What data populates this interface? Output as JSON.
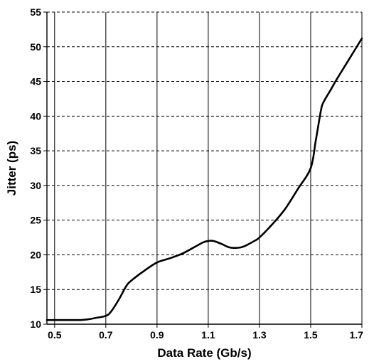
{
  "chart_data": {
    "type": "line",
    "title": "",
    "xlabel": "Data Rate (Gb/s)",
    "ylabel": "Jitter (ps)",
    "xlim": [
      0.47,
      1.7
    ],
    "ylim": [
      10,
      55
    ],
    "x_ticks": [
      0.5,
      0.7,
      0.9,
      1.1,
      1.3,
      1.5,
      1.7
    ],
    "x_tick_labels": [
      "0.5",
      "0.7",
      "0.9",
      "1.1",
      "1.3",
      "1.5",
      "1.7"
    ],
    "y_ticks": [
      10,
      15,
      20,
      25,
      30,
      35,
      40,
      45,
      50,
      55
    ],
    "y_tick_labels": [
      "10",
      "15",
      "20",
      "25",
      "30",
      "35",
      "40",
      "45",
      "50",
      "55"
    ],
    "grid": {
      "vertical": "solid",
      "horizontal": "dashed"
    },
    "legend": "none",
    "colors": {
      "line": "#000000",
      "grid": "#000000",
      "background": "#ffffff"
    },
    "series": [
      {
        "x": [
          0.47,
          0.5,
          0.55,
          0.6,
          0.63,
          0.66,
          0.7,
          0.72,
          0.75,
          0.78,
          0.8,
          0.85,
          0.9,
          0.95,
          1.0,
          1.05,
          1.08,
          1.1,
          1.12,
          1.15,
          1.18,
          1.2,
          1.23,
          1.25,
          1.28,
          1.3,
          1.35,
          1.4,
          1.45,
          1.5,
          1.52,
          1.54,
          1.55,
          1.58,
          1.6,
          1.65,
          1.7
        ],
        "y": [
          10.6,
          10.6,
          10.6,
          10.6,
          10.7,
          10.9,
          11.2,
          11.8,
          13.5,
          15.5,
          16.3,
          17.7,
          18.9,
          19.5,
          20.2,
          21.2,
          21.8,
          22.0,
          22.0,
          21.6,
          21.1,
          21.0,
          21.1,
          21.4,
          22.0,
          22.5,
          24.4,
          26.6,
          29.5,
          32.5,
          36.5,
          40.8,
          42.0,
          43.9,
          45.2,
          48.2,
          51.2
        ]
      }
    ]
  }
}
